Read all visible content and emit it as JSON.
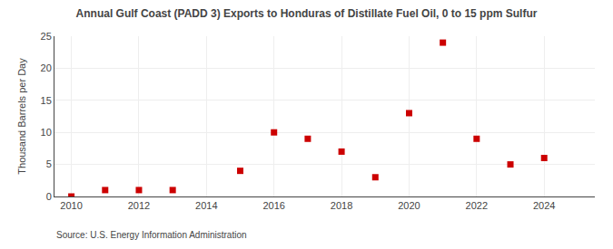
{
  "chart_data": {
    "type": "scatter",
    "title": "Annual Gulf Coast (PADD 3) Exports to Honduras of Distillate Fuel Oil, 0 to 15 ppm Sulfur",
    "ylabel": "Thousand Barrels per Day",
    "annotations": [
      "Source: U.S. Energy Information Administration"
    ],
    "x": [
      2010,
      2011,
      2012,
      2013,
      2015,
      2016,
      2017,
      2018,
      2019,
      2020,
      2021,
      2022,
      2023,
      2024
    ],
    "values": [
      0.0,
      1.0,
      1.0,
      1.0,
      4.0,
      10.0,
      9.0,
      7.0,
      3.0,
      13.0,
      24.0,
      9.0,
      5.0,
      6.0
    ],
    "color": "#cc0000",
    "marker": "square",
    "xlim": [
      2009.5,
      2025.5
    ],
    "ylim": [
      0,
      25
    ],
    "xticks": [
      2010,
      2012,
      2014,
      2016,
      2018,
      2020,
      2022,
      2024
    ],
    "yticks": [
      0,
      5,
      10,
      15,
      20,
      25
    ],
    "grid": true
  }
}
